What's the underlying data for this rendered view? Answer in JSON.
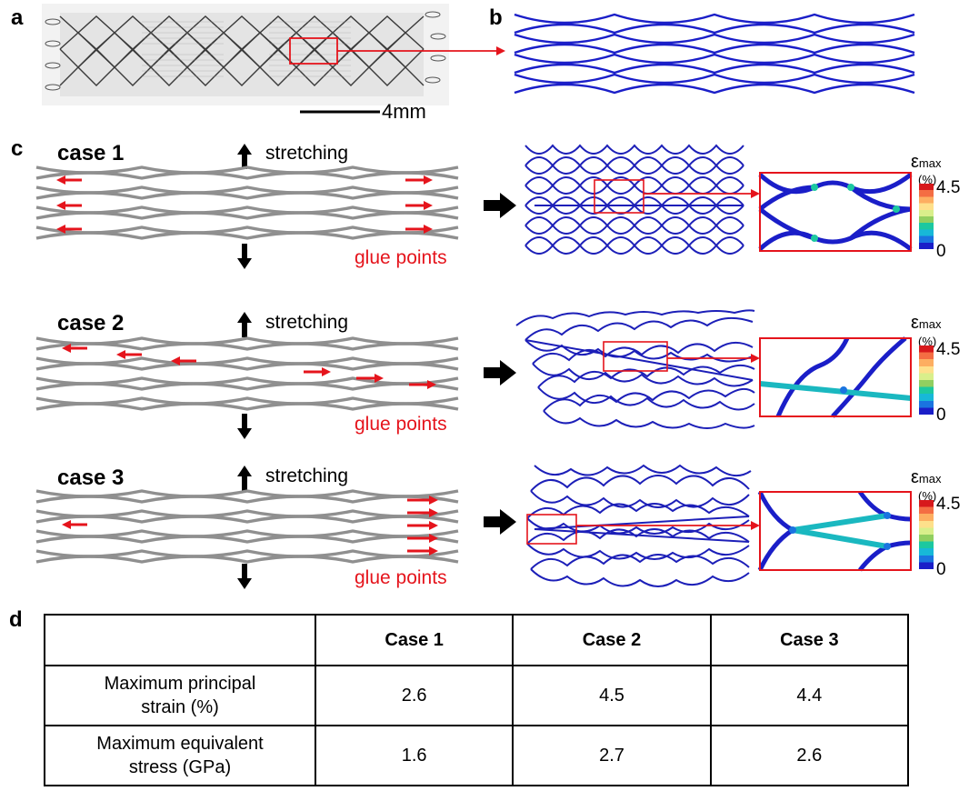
{
  "panels": {
    "a": "a",
    "b": "b",
    "c": "c",
    "d": "d"
  },
  "scale_bar": {
    "label": "4mm"
  },
  "cases": [
    {
      "title": "case 1",
      "stretch_label": "stretching",
      "glue_label": "glue points"
    },
    {
      "title": "case 2",
      "stretch_label": "stretching",
      "glue_label": "glue points"
    },
    {
      "title": "case 3",
      "stretch_label": "stretching",
      "glue_label": "glue points"
    }
  ],
  "colorbar": {
    "symbol": "ε",
    "subscript": "max",
    "unit": "(%)",
    "max_label": "4.5",
    "min_label": "0",
    "colors": [
      "#d7191c",
      "#f46d43",
      "#fdae61",
      "#fee08b",
      "#d9ef8b",
      "#91cf60",
      "#1cc8a0",
      "#17b8d8",
      "#1a74e0",
      "#1a1ec8"
    ]
  },
  "colors": {
    "accent_red": "#e5141c",
    "stent_blue": "#1a1ec8",
    "stent_grey": "#8f8f8f"
  },
  "table": {
    "headers": [
      "",
      "Case 1",
      "Case 2",
      "Case 3"
    ],
    "rows": [
      {
        "label_line1": "Maximum principal",
        "label_line2": "strain (%)",
        "values": [
          "2.6",
          "4.5",
          "4.4"
        ]
      },
      {
        "label_line1": "Maximum equivalent",
        "label_line2": "stress (GPa)",
        "values": [
          "1.6",
          "2.7",
          "2.6"
        ]
      }
    ]
  }
}
